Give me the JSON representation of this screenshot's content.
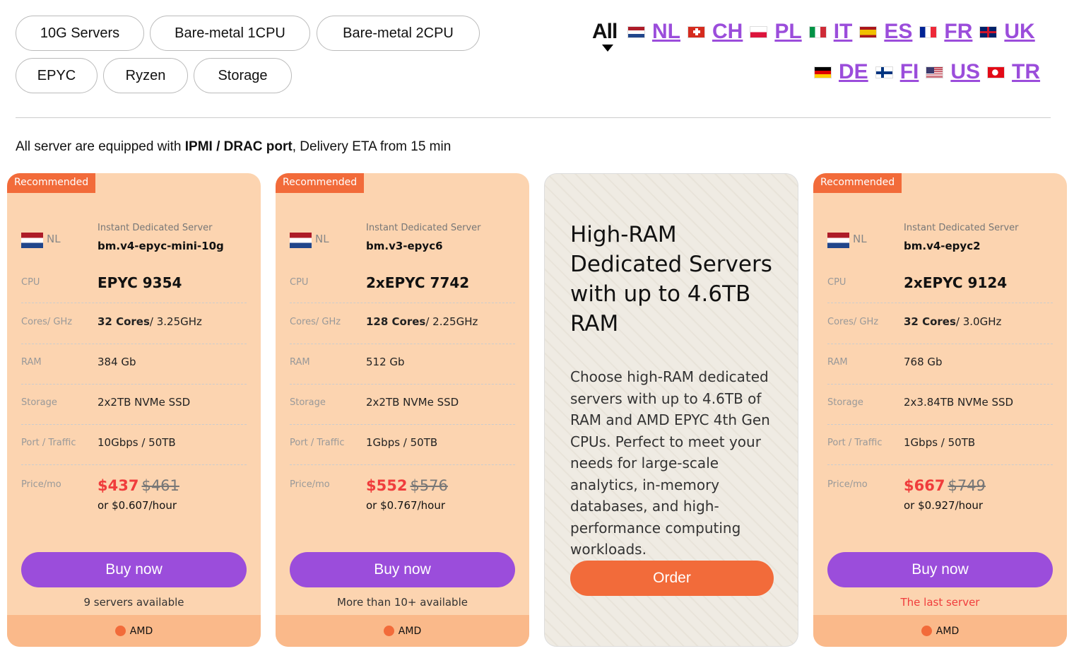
{
  "filters": [
    "10G Servers",
    "Bare-metal 1CPU",
    "Bare-metal 2CPU",
    "EPYC",
    "Ryzen",
    "Storage"
  ],
  "locations": {
    "all": "All",
    "row1": [
      "NL",
      "CH",
      "PL",
      "IT",
      "ES",
      "FR",
      "UK"
    ],
    "row2": [
      "DE",
      "FI",
      "US",
      "TR"
    ]
  },
  "note": {
    "prefix": "All server are equipped with ",
    "bold": "IPMI / DRAC port",
    "suffix": ", Delivery ETA from 15 min"
  },
  "labels": {
    "cpu": "CPU",
    "cores": "Cores/ GHz",
    "ram": "RAM",
    "storage": "Storage",
    "port": "Port / Traffic",
    "price": "Price/mo",
    "subtitle": "Instant Dedicated Server",
    "buy": "Buy now",
    "badge": "Recommended",
    "vendor": "AMD"
  },
  "cards": [
    {
      "country": "NL",
      "name": "bm.v4-epyc-mini-10g",
      "cpu": "EPYC 9354",
      "cores_count": "32 Cores",
      "ghz": "/ 3.25GHz",
      "ram": "384 Gb",
      "storage": "2x2TB NVMe SSD",
      "port": "10Gbps / 50TB",
      "price": "$437",
      "old_price": "$461",
      "hourly": "or $0.607/hour",
      "availability": "9 servers available",
      "availability_color": "#333333"
    },
    {
      "country": "NL",
      "name": "bm.v3-epyc6",
      "cpu": "2xEPYC 7742",
      "cores_count": "128 Cores",
      "ghz": "/ 2.25GHz",
      "ram": "512 Gb",
      "storage": "2x2TB NVMe SSD",
      "port": "1Gbps / 50TB",
      "price": "$552",
      "old_price": "$576",
      "hourly": "or $0.767/hour",
      "availability": "More than 10+ available",
      "availability_color": "#333333"
    },
    {
      "country": "NL",
      "name": "bm.v4-epyc2",
      "cpu": "2xEPYC 9124",
      "cores_count": "32 Cores",
      "ghz": "/ 3.0GHz",
      "ram": "768 Gb",
      "storage": "2x3.84TB NVMe SSD",
      "port": "1Gbps / 50TB",
      "price": "$667",
      "old_price": "$749",
      "hourly": "or $0.927/hour",
      "availability": "The last server",
      "availability_color": "#f03c3c"
    }
  ],
  "promo": {
    "title": "High-RAM Dedicated Servers with up to 4.6TB RAM",
    "text": "Choose high-RAM dedicated servers with up to 4.6TB of RAM and AMD EPYC 4th Gen CPUs. Perfect to meet your needs for large-scale analytics, in-memory databases, and high-performance computing workloads.",
    "button": "Order"
  },
  "colors": {
    "accent": "#9b4ddb",
    "badge": "#f26b3a",
    "card": "#fcd4b0",
    "price": "#f03c3c"
  }
}
